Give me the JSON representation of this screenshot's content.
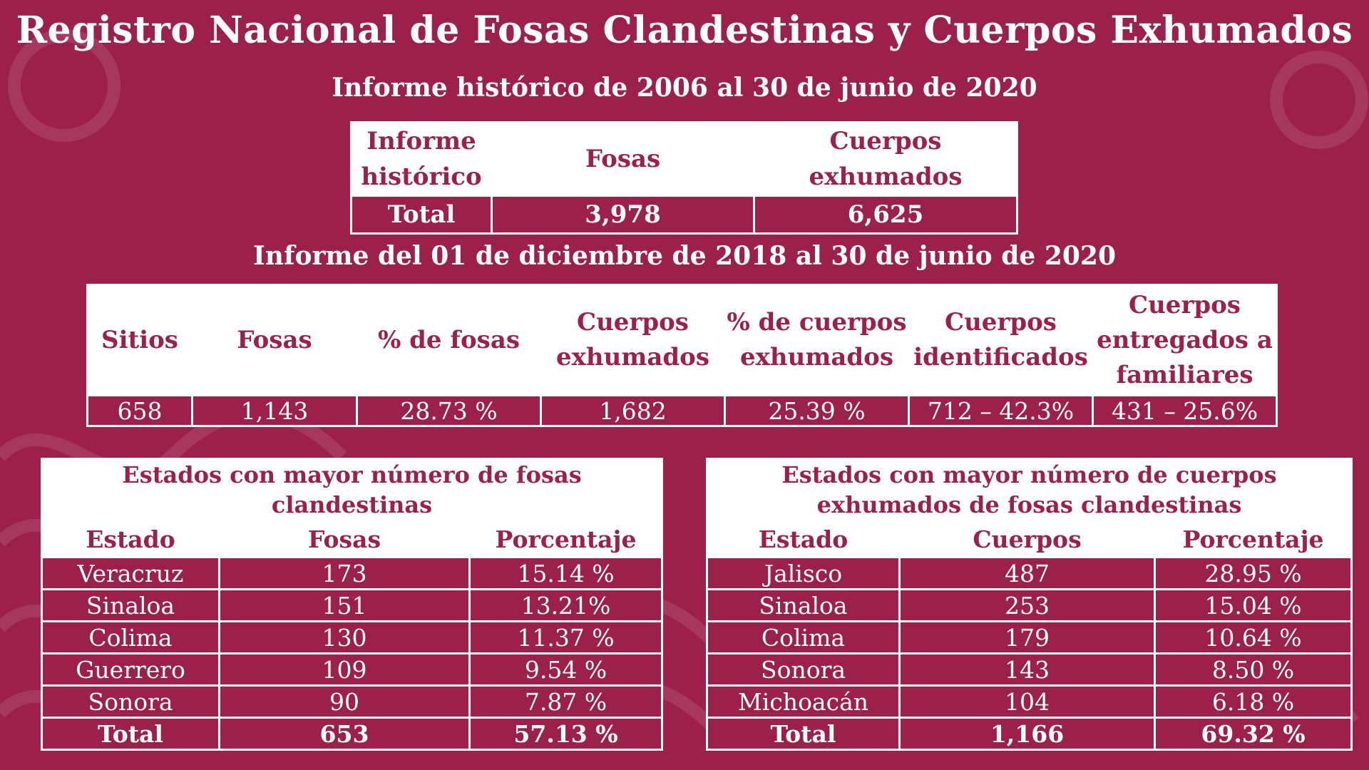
{
  "title": "Registro Nacional de Fosas Clandestinas y Cuerpos Exhumados",
  "historico": {
    "subtitle": "Informe histórico de 2006 al 30 de junio de 2020",
    "headers": [
      "Informe histórico",
      "Fosas",
      "Cuerpos exhumados"
    ],
    "row": {
      "label": "Total",
      "fosas": "3,978",
      "cuerpos": "6,625"
    }
  },
  "periodo": {
    "subtitle": "Informe del 01 de diciembre de 2018 al 30 de junio de 2020",
    "headers": [
      "Sitios",
      "Fosas",
      "% de fosas",
      "Cuerpos exhumados",
      "% de cuerpos exhumados",
      "Cuerpos identificados",
      "Cuerpos entregados a familiares"
    ],
    "values": [
      "658",
      "1,143",
      "28.73 %",
      "1,682",
      "25.39 %",
      "712 – 42.3%",
      "431 – 25.6%"
    ]
  },
  "fosas_estados": {
    "caption": "Estados con mayor número de fosas clandestinas",
    "headers": [
      "Estado",
      "Fosas",
      "Porcentaje"
    ],
    "rows": [
      [
        "Veracruz",
        "173",
        "15.14 %"
      ],
      [
        "Sinaloa",
        "151",
        "13.21%"
      ],
      [
        "Colima",
        "130",
        "11.37 %"
      ],
      [
        "Guerrero",
        "109",
        "9.54 %"
      ],
      [
        "Sonora",
        "90",
        "7.87 %"
      ]
    ],
    "total": [
      "Total",
      "653",
      "57.13 %"
    ]
  },
  "cuerpos_estados": {
    "caption": "Estados con mayor número de cuerpos exhumados de fosas clandestinas",
    "headers": [
      "Estado",
      "Cuerpos",
      "Porcentaje"
    ],
    "rows": [
      [
        "Jalisco",
        "487",
        "28.95 %"
      ],
      [
        "Sinaloa",
        "253",
        "15.04 %"
      ],
      [
        "Colima",
        "179",
        "10.64 %"
      ],
      [
        "Sonora",
        "143",
        "8.50 %"
      ],
      [
        "Michoacán",
        "104",
        "6.18 %"
      ]
    ],
    "total": [
      "Total",
      "1,166",
      "69.32 %"
    ]
  },
  "colors": {
    "background": "#9c2149",
    "header_background": "#ffffff",
    "text_light": "#ffffff"
  }
}
